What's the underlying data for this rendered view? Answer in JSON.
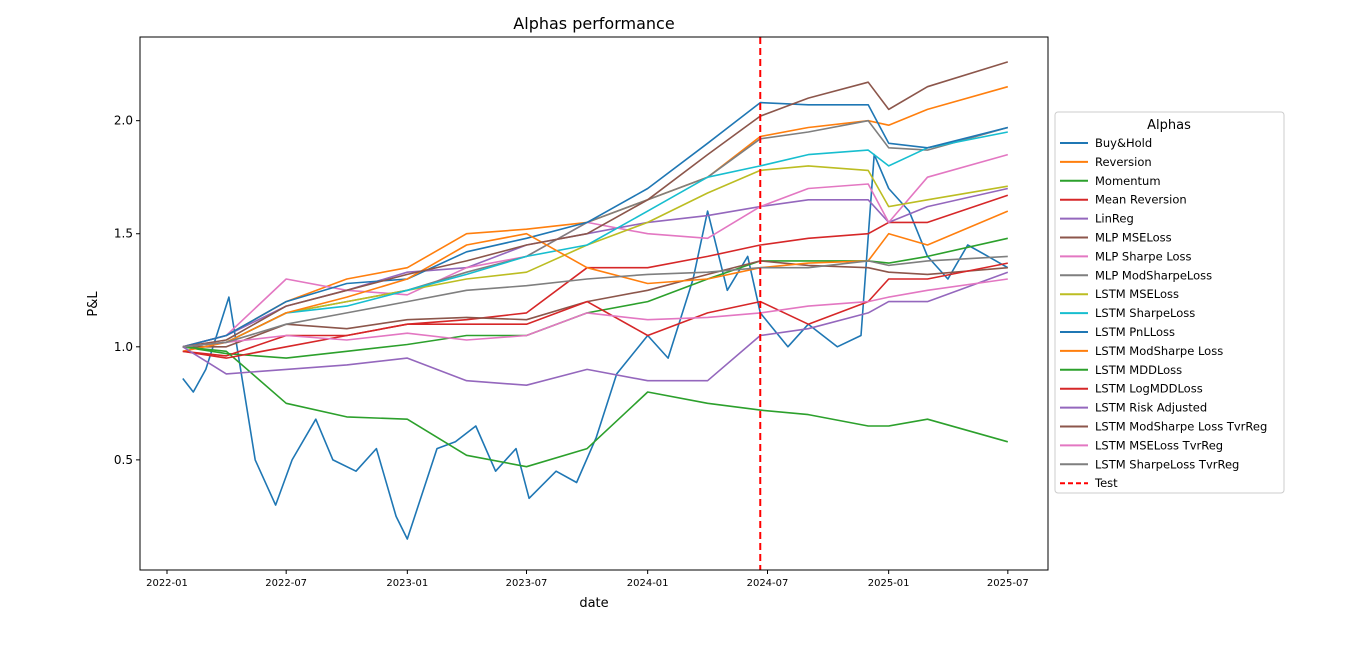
{
  "chart_data": {
    "type": "line",
    "title": "Alphas performance",
    "xlabel": "date",
    "ylabel": "P&L",
    "xlim": [
      "2021-11-21",
      "2025-08-31"
    ],
    "ylim": [
      0.013,
      2.37
    ],
    "xticks": [
      "2022-01",
      "2022-07",
      "2023-01",
      "2023-07",
      "2024-01",
      "2024-07",
      "2025-01",
      "2025-07"
    ],
    "yticks": [
      0.5,
      1.0,
      1.5,
      2.0
    ],
    "grid": false,
    "legend": {
      "title": "Alphas",
      "placement": "right, outside"
    },
    "x": [
      "2022-01-25",
      "2022-04-01",
      "2022-07-01",
      "2022-10-01",
      "2023-01-01",
      "2023-04-01",
      "2023-07-01",
      "2023-10-01",
      "2024-01-01",
      "2024-04-01",
      "2024-06-20",
      "2024-09-01",
      "2024-12-01",
      "2025-01-01",
      "2025-03-01",
      "2025-07-01"
    ],
    "series": [
      {
        "name": "Buy&Hold",
        "color": "#1f77b4",
        "x": [
          "2022-01-25",
          "2022-02-10",
          "2022-03-01",
          "2022-04-05",
          "2022-04-20",
          "2022-05-15",
          "2022-06-15",
          "2022-07-10",
          "2022-08-15",
          "2022-09-10",
          "2022-10-15",
          "2022-11-15",
          "2022-12-15",
          "2023-01-01",
          "2023-02-15",
          "2023-03-15",
          "2023-04-15",
          "2023-05-15",
          "2023-06-15",
          "2023-07-05",
          "2023-08-15",
          "2023-09-15",
          "2023-10-15",
          "2023-11-15",
          "2024-01-01",
          "2024-02-01",
          "2024-03-10",
          "2024-04-01",
          "2024-05-01",
          "2024-06-01",
          "2024-06-20",
          "2024-08-01",
          "2024-09-01",
          "2024-10-15",
          "2024-11-20",
          "2024-12-10",
          "2025-01-01",
          "2025-02-01",
          "2025-03-01",
          "2025-04-01",
          "2025-05-01",
          "2025-06-01",
          "2025-07-01"
        ],
        "y": [
          0.86,
          0.8,
          0.9,
          1.22,
          0.95,
          0.5,
          0.3,
          0.5,
          0.68,
          0.5,
          0.45,
          0.55,
          0.25,
          0.15,
          0.55,
          0.58,
          0.65,
          0.45,
          0.55,
          0.33,
          0.45,
          0.4,
          0.6,
          0.88,
          1.05,
          0.95,
          1.3,
          1.6,
          1.25,
          1.4,
          1.15,
          1.0,
          1.1,
          1.0,
          1.05,
          1.85,
          1.7,
          1.6,
          1.4,
          1.3,
          1.45,
          1.4,
          1.35
        ]
      },
      {
        "name": "Reversion",
        "color": "#ff7f0e",
        "y": [
          1.0,
          1.05,
          1.2,
          1.3,
          1.35,
          1.5,
          1.52,
          1.55,
          1.65,
          1.75,
          1.93,
          1.97,
          2.0,
          1.98,
          2.05,
          2.15
        ]
      },
      {
        "name": "Momentum",
        "color": "#2ca02c",
        "y": [
          1.0,
          0.97,
          0.95,
          0.98,
          1.01,
          1.05,
          1.05,
          1.15,
          1.2,
          1.3,
          1.38,
          1.38,
          1.38,
          1.37,
          1.4,
          1.48
        ]
      },
      {
        "name": "Mean Reversion",
        "color": "#d62728",
        "y": [
          0.98,
          0.96,
          1.05,
          1.05,
          1.1,
          1.12,
          1.15,
          1.35,
          1.35,
          1.4,
          1.45,
          1.48,
          1.5,
          1.55,
          1.55,
          1.67
        ]
      },
      {
        "name": "LinReg",
        "color": "#9467bd",
        "y": [
          1.0,
          1.05,
          1.18,
          1.25,
          1.33,
          1.35,
          1.45,
          1.5,
          1.55,
          1.58,
          1.62,
          1.65,
          1.65,
          1.55,
          1.62,
          1.7
        ]
      },
      {
        "name": "MLP MSELoss",
        "color": "#8c564b",
        "y": [
          1.0,
          1.0,
          1.1,
          1.08,
          1.12,
          1.13,
          1.12,
          1.2,
          1.25,
          1.32,
          1.38,
          1.36,
          1.35,
          1.33,
          1.32,
          1.35
        ]
      },
      {
        "name": "MLP Sharpe Loss",
        "color": "#e377c2",
        "y": [
          1.0,
          1.05,
          1.3,
          1.25,
          1.23,
          1.35,
          1.4,
          1.55,
          1.5,
          1.48,
          1.62,
          1.7,
          1.72,
          1.55,
          1.75,
          1.85
        ]
      },
      {
        "name": "MLP ModSharpeLoss",
        "color": "#7f7f7f",
        "y": [
          1.0,
          1.02,
          1.15,
          1.2,
          1.25,
          1.33,
          1.4,
          1.55,
          1.65,
          1.75,
          1.92,
          1.95,
          2.0,
          1.88,
          1.87,
          1.97
        ]
      },
      {
        "name": "LSTM MSELoss",
        "color": "#bcbd22",
        "y": [
          1.0,
          1.02,
          1.15,
          1.2,
          1.25,
          1.3,
          1.33,
          1.45,
          1.55,
          1.68,
          1.78,
          1.8,
          1.78,
          1.62,
          1.65,
          1.71
        ]
      },
      {
        "name": "LSTM SharpeLoss",
        "color": "#17becf",
        "y": [
          1.0,
          1.02,
          1.15,
          1.18,
          1.25,
          1.32,
          1.4,
          1.45,
          1.6,
          1.75,
          1.8,
          1.85,
          1.87,
          1.8,
          1.88,
          1.95
        ]
      },
      {
        "name": "LSTM PnLLoss",
        "color": "#1f77b4",
        "y": [
          1.0,
          1.05,
          1.2,
          1.28,
          1.3,
          1.42,
          1.48,
          1.55,
          1.7,
          1.9,
          2.08,
          2.07,
          2.07,
          1.9,
          1.88,
          1.97
        ]
      },
      {
        "name": "LSTM ModSharpe Loss",
        "color": "#ff7f0e",
        "y": [
          0.98,
          1.02,
          1.15,
          1.22,
          1.3,
          1.45,
          1.5,
          1.35,
          1.28,
          1.3,
          1.35,
          1.37,
          1.38,
          1.5,
          1.45,
          1.6
        ]
      },
      {
        "name": "LSTM MDDLoss",
        "color": "#2ca02c",
        "y": [
          1.0,
          0.98,
          0.75,
          0.69,
          0.68,
          0.52,
          0.47,
          0.55,
          0.8,
          0.75,
          0.72,
          0.7,
          0.65,
          0.65,
          0.68,
          0.58
        ]
      },
      {
        "name": "LSTM LogMDDLoss",
        "color": "#d62728",
        "y": [
          0.98,
          0.95,
          1.0,
          1.05,
          1.1,
          1.1,
          1.1,
          1.2,
          1.05,
          1.15,
          1.2,
          1.1,
          1.2,
          1.3,
          1.3,
          1.37
        ]
      },
      {
        "name": "LSTM Risk Adjusted",
        "color": "#9467bd",
        "y": [
          1.0,
          0.88,
          0.9,
          0.92,
          0.95,
          0.85,
          0.83,
          0.9,
          0.85,
          0.85,
          1.05,
          1.08,
          1.15,
          1.2,
          1.2,
          1.33
        ]
      },
      {
        "name": "LSTM ModSharpe Loss TvrReg",
        "color": "#8c564b",
        "y": [
          1.0,
          1.03,
          1.18,
          1.25,
          1.32,
          1.38,
          1.45,
          1.5,
          1.65,
          1.85,
          2.02,
          2.1,
          2.17,
          2.05,
          2.15,
          2.26
        ]
      },
      {
        "name": "LSTM MSELoss TvrReg",
        "color": "#e377c2",
        "y": [
          1.0,
          1.02,
          1.05,
          1.03,
          1.06,
          1.03,
          1.05,
          1.15,
          1.12,
          1.13,
          1.15,
          1.18,
          1.2,
          1.22,
          1.25,
          1.3
        ]
      },
      {
        "name": "LSTM SharpeLoss TvrReg",
        "color": "#7f7f7f",
        "y": [
          1.0,
          1.02,
          1.1,
          1.15,
          1.2,
          1.25,
          1.27,
          1.3,
          1.32,
          1.33,
          1.35,
          1.35,
          1.38,
          1.36,
          1.38,
          1.4
        ]
      }
    ],
    "vline": {
      "name": "Test",
      "date": "2024-06-20",
      "color": "#ff0000",
      "style": "dashed"
    }
  }
}
